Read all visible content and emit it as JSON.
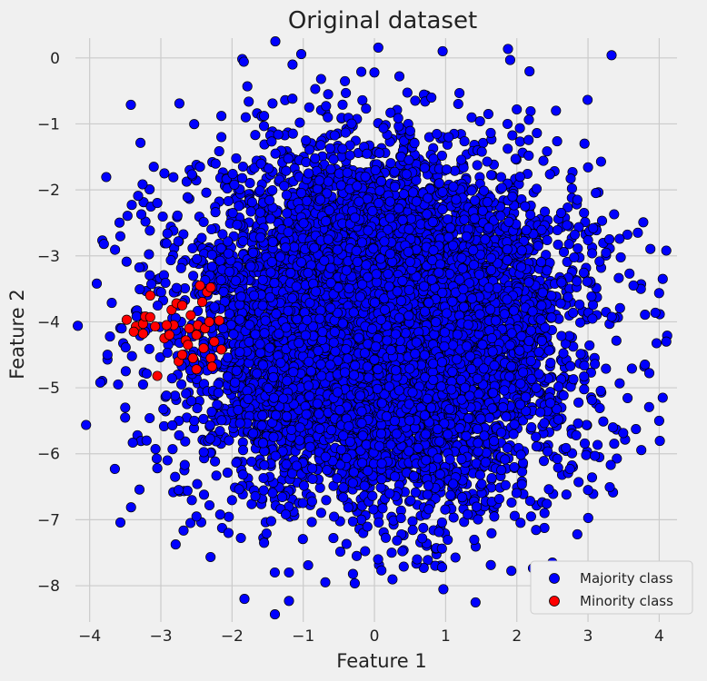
{
  "chart_data": {
    "type": "scatter",
    "title": "Original dataset",
    "xlabel": "Feature 1",
    "ylabel": "Feature 2",
    "xlim": [
      -4.2,
      4.25
    ],
    "ylim": [
      -8.55,
      0.3
    ],
    "xticks": [
      -4,
      -3,
      -2,
      -1,
      0,
      1,
      2,
      3,
      4
    ],
    "yticks": [
      0,
      -1,
      -2,
      -3,
      -4,
      -5,
      -6,
      -7,
      -8
    ],
    "xtick_labels": [
      "−4",
      "−3",
      "−2",
      "−1",
      "0",
      "1",
      "2",
      "3",
      "4"
    ],
    "ytick_labels": [
      "0",
      "−1",
      "−2",
      "−3",
      "−4",
      "−5",
      "−6",
      "−7",
      "−8"
    ],
    "grid": true,
    "legend_position": "bottom-right",
    "series": [
      {
        "name": "Majority class",
        "color": "#0000ff",
        "distribution": {
          "center": [
            0.1,
            -4.1
          ],
          "spread": 1.25,
          "approx_count": 20000
        },
        "points": [
          [
            -1.15,
            -0.1
          ],
          [
            0.0,
            -0.22
          ],
          [
            -0.75,
            -0.32
          ],
          [
            0.35,
            -0.28
          ],
          [
            -0.65,
            -0.55
          ],
          [
            0.8,
            -0.6
          ],
          [
            -2.15,
            -0.88
          ],
          [
            -1.55,
            -0.88
          ],
          [
            -3.8,
            -2.82
          ],
          [
            -3.9,
            -3.42
          ],
          [
            -3.55,
            -4.1
          ],
          [
            -3.75,
            -4.5
          ],
          [
            -3.85,
            -4.92
          ],
          [
            -3.6,
            -4.95
          ],
          [
            -3.25,
            -4.95
          ],
          [
            -3.5,
            -5.3
          ],
          [
            -3.2,
            -5.8
          ],
          [
            -3.05,
            -6.22
          ],
          [
            -2.8,
            -6.35
          ],
          [
            -2.75,
            -6.55
          ],
          [
            -2.5,
            -6.95
          ],
          [
            -2.05,
            -7.2
          ],
          [
            -1.55,
            -7.35
          ],
          [
            -1.4,
            -7.8
          ],
          [
            -1.2,
            -7.8
          ],
          [
            -1.2,
            -8.23
          ],
          [
            -3.1,
            -1.65
          ],
          [
            -2.95,
            -1.75
          ],
          [
            -3.05,
            -2.2
          ],
          [
            -2.5,
            -1.62
          ],
          [
            -2.45,
            -1.65
          ],
          [
            4.1,
            -2.92
          ],
          [
            4.05,
            -3.35
          ],
          [
            4.1,
            -4.3
          ],
          [
            4.05,
            -5.15
          ],
          [
            4.0,
            -5.5
          ],
          [
            3.8,
            -4.65
          ],
          [
            3.7,
            -2.65
          ],
          [
            3.3,
            -2.75
          ],
          [
            2.95,
            -1.3
          ],
          [
            2.55,
            -0.8
          ],
          [
            2.0,
            -0.78
          ],
          [
            1.6,
            -0.85
          ],
          [
            3.35,
            -5.6
          ],
          [
            3.0,
            -6.55
          ],
          [
            2.85,
            -7.22
          ],
          [
            2.5,
            -7.65
          ],
          [
            2.2,
            -6.95
          ],
          [
            0.95,
            -7.72
          ],
          [
            0.6,
            -7.6
          ],
          [
            -0.25,
            -7.55
          ]
        ]
      },
      {
        "name": "Minority class",
        "color": "#ff0000",
        "points": [
          [
            -3.48,
            -3.97
          ],
          [
            -3.35,
            -4.07
          ],
          [
            -3.38,
            -4.15
          ],
          [
            -3.25,
            -4.03
          ],
          [
            -3.22,
            -3.92
          ],
          [
            -3.15,
            -3.93
          ],
          [
            -3.08,
            -4.07
          ],
          [
            -3.25,
            -4.18
          ],
          [
            -3.15,
            -3.6
          ],
          [
            -3.05,
            -4.82
          ],
          [
            -2.95,
            -4.25
          ],
          [
            -2.85,
            -3.82
          ],
          [
            -2.78,
            -3.72
          ],
          [
            -2.82,
            -4.05
          ],
          [
            -2.88,
            -4.2
          ],
          [
            -2.75,
            -4.6
          ],
          [
            -2.7,
            -4.5
          ],
          [
            -2.65,
            -4.28
          ],
          [
            -2.6,
            -4.1
          ],
          [
            -2.58,
            -3.9
          ],
          [
            -2.55,
            -4.55
          ],
          [
            -2.5,
            -4.2
          ],
          [
            -2.48,
            -4.05
          ],
          [
            -2.45,
            -3.45
          ],
          [
            -2.42,
            -3.7
          ],
          [
            -2.4,
            -4.4
          ],
          [
            -2.38,
            -4.1
          ],
          [
            -2.35,
            -3.55
          ],
          [
            -2.32,
            -4.0
          ],
          [
            -2.3,
            -4.55
          ],
          [
            -2.28,
            -4.68
          ],
          [
            -2.3,
            -3.48
          ],
          [
            -2.25,
            -4.3
          ],
          [
            -2.18,
            -3.98
          ],
          [
            -2.15,
            -4.42
          ],
          [
            -2.5,
            -4.72
          ],
          [
            -2.7,
            -3.75
          ],
          [
            -2.92,
            -4.05
          ],
          [
            -2.62,
            -4.35
          ]
        ]
      }
    ]
  }
}
